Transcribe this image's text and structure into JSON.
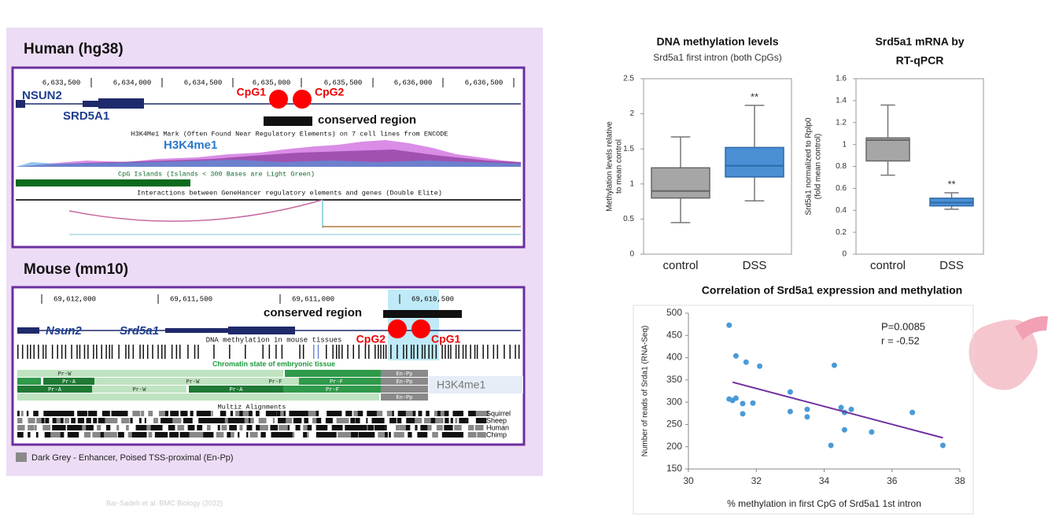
{
  "genome": {
    "human": {
      "title": "Human (hg38)",
      "coordinates": [
        "6,633,500",
        "6,634,000",
        "6,634,500",
        "6,635,000",
        "6,635,500",
        "6,636,000",
        "6,636,500"
      ],
      "gene1": "NSUN2",
      "gene2": "SRD5A1",
      "cpg1": "CpG1",
      "cpg2": "CpG2",
      "conserved": "conserved region",
      "h3k4_track": "H3K4Me1 Mark (Often Found Near Regulatory Elements) on 7 cell lines from ENCODE",
      "h3k4_label": "H3K4me1",
      "cpg_track": "CpG Islands (Islands < 300 Bases are Light Green)",
      "genehancer_track": "Interactions between GeneHancer regulatory elements and genes (Double Elite)"
    },
    "mouse": {
      "title": "Mouse (mm10)",
      "coordinates": [
        "69,612,000",
        "69,611,500",
        "69,611,000",
        "69,610,500"
      ],
      "gene1": "Nsun2",
      "gene2": "Srd5a1",
      "conserved": "conserved region",
      "methylation_track": "DNA methylation in mouse tissues",
      "cpg2": "CpG2",
      "cpg1": "CpG1",
      "chromatin_track": "Chromatin state of embryonic tissue",
      "chromatin_labels": [
        "Pr-W",
        "Pr-A",
        "Pr-F",
        "En-Pp",
        "Pr-W",
        "Pr-A",
        "Pr-F",
        "En-Pp",
        "Pr-A",
        "Pr-W",
        "Pr-F",
        "En-Pp"
      ],
      "h3k4_label": "H3K4me1",
      "multiz_track": "Multiz Alignments",
      "species": [
        "Squirrel",
        "Sheep",
        "Human",
        "Chimp"
      ]
    },
    "legend": "Dark Grey - Enhancer, Poised TSS-proximal (En-Pp)",
    "citation": "Bar-Sadeh et al. BMC Biology (2022)"
  },
  "chart_data": [
    {
      "type": "box",
      "title": [
        "DNA methylation levels"
      ],
      "subtitle": "Srd5a1 first intron (both CpGs)",
      "ylabel": [
        "Methylation levels relative",
        "to mean control"
      ],
      "categories": [
        "control",
        "DSS"
      ],
      "boxes": [
        {
          "min": 0.45,
          "q1": 0.8,
          "median": 0.9,
          "q3": 1.23,
          "max": 1.67,
          "color": "#a6a6a6"
        },
        {
          "min": 0.76,
          "q1": 1.1,
          "median": 1.26,
          "q3": 1.52,
          "max": 2.12,
          "color": "#4a8fd4"
        }
      ],
      "annotation": "**",
      "ylim": [
        0,
        2.5
      ],
      "yticks": [
        0,
        0.5,
        1,
        1.5,
        2,
        2.5
      ]
    },
    {
      "type": "box",
      "title": [
        "Srd5a1 mRNA by",
        "RT-qPCR"
      ],
      "ylabel": [
        "Srd5a1 normalized to Rplp0",
        "(fold mean control)"
      ],
      "categories": [
        "control",
        "DSS"
      ],
      "boxes": [
        {
          "min": 0.72,
          "q1": 0.85,
          "median": 1.04,
          "q3": 1.06,
          "max": 1.36,
          "color": "#a6a6a6"
        },
        {
          "min": 0.41,
          "q1": 0.44,
          "median": 0.47,
          "q3": 0.51,
          "max": 0.56,
          "color": "#4a8fd4"
        }
      ],
      "annotation": "**",
      "ylim": [
        0,
        1.6
      ],
      "yticks": [
        0,
        0.2,
        0.4,
        0.6,
        0.8,
        1,
        1.2,
        1.4,
        1.6
      ]
    },
    {
      "type": "scatter",
      "title": [
        "Correlation of Srd5a1 expression and methylation"
      ],
      "xlabel": "% methylation in first CpG of Srd5a1 1st intron",
      "ylabel": [
        "Number of reads of Srda1 (RNA-Seq)"
      ],
      "x": [
        31.2,
        31.4,
        31.7,
        32.1,
        33.0,
        31.9,
        34.3,
        31.2,
        31.3,
        31.4,
        31.6,
        31.6,
        33.0,
        33.5,
        33.5,
        34.5,
        34.6,
        34.8,
        34.6,
        34.2,
        35.4,
        36.6,
        37.5
      ],
      "values": [
        473,
        404,
        390,
        381,
        323,
        298,
        383,
        307,
        304,
        309,
        297,
        274,
        279,
        284,
        267,
        288,
        277,
        284,
        238,
        203,
        233,
        277,
        203
      ],
      "color": "#4a9ad8",
      "trendline": {
        "x": [
          31.3,
          37.5
        ],
        "values": [
          345,
          220
        ],
        "color": "#7030a0"
      },
      "annotations": [
        "P=0.0085",
        "r = -0.52"
      ],
      "xlim": [
        30,
        38
      ],
      "xticks": [
        30,
        32,
        34,
        36,
        38
      ],
      "ylim": [
        150,
        500
      ],
      "yticks": [
        150,
        200,
        250,
        300,
        350,
        400,
        450,
        500
      ]
    }
  ]
}
